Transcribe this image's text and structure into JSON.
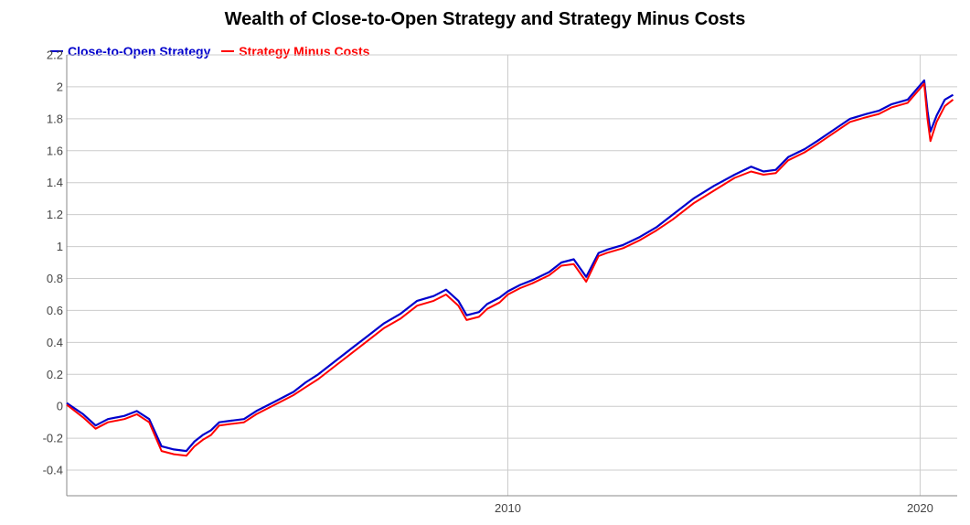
{
  "chart_data": {
    "type": "line",
    "title": "Wealth of Close-to-Open Strategy and Strategy Minus Costs",
    "xlabel": "",
    "ylabel": "",
    "x_tick_labels": [
      "2010",
      "2020"
    ],
    "y_ticks": [
      "2.2",
      "2",
      "1.8",
      "1.6",
      "1.4",
      "1.2",
      "1",
      "0.8",
      "0.6",
      "0.4",
      "0.2",
      "0",
      "-0.2",
      "-0.4"
    ],
    "y_tick_values": [
      2.2,
      2.0,
      1.8,
      1.6,
      1.4,
      1.2,
      1.0,
      0.8,
      0.6,
      0.4,
      0.2,
      0.0,
      -0.2,
      -0.4
    ],
    "xlim": [
      1999.3,
      2020.9
    ],
    "ylim": [
      -0.56,
      2.2
    ],
    "x_ticks": [
      2010,
      2020
    ],
    "grid": true,
    "legend_position": "top-left",
    "series": [
      {
        "name": "Close-to-Open Strategy",
        "color": "#0000cc",
        "x": [
          1999.3,
          1999.7,
          2000.0,
          2000.3,
          2000.7,
          2001.0,
          2001.3,
          2001.6,
          2001.9,
          2002.2,
          2002.4,
          2002.6,
          2002.8,
          2003.0,
          2003.3,
          2003.6,
          2003.9,
          2004.2,
          2004.5,
          2004.8,
          2005.1,
          2005.4,
          2005.8,
          2006.2,
          2006.6,
          2007.0,
          2007.4,
          2007.8,
          2008.2,
          2008.5,
          2008.8,
          2009.0,
          2009.3,
          2009.5,
          2009.8,
          2010.0,
          2010.3,
          2010.6,
          2011.0,
          2011.3,
          2011.6,
          2011.9,
          2012.2,
          2012.4,
          2012.8,
          2013.2,
          2013.6,
          2014.0,
          2014.5,
          2015.0,
          2015.5,
          2015.9,
          2016.2,
          2016.5,
          2016.8,
          2017.2,
          2017.5,
          2017.9,
          2018.3,
          2018.7,
          2019.0,
          2019.3,
          2019.7,
          2020.0,
          2020.1,
          2020.18,
          2020.25,
          2020.4,
          2020.6,
          2020.8
        ],
        "values": [
          0.02,
          -0.05,
          -0.12,
          -0.08,
          -0.06,
          -0.03,
          -0.08,
          -0.25,
          -0.27,
          -0.28,
          -0.22,
          -0.18,
          -0.15,
          -0.1,
          -0.09,
          -0.08,
          -0.03,
          0.01,
          0.05,
          0.09,
          0.15,
          0.2,
          0.28,
          0.36,
          0.44,
          0.52,
          0.58,
          0.66,
          0.69,
          0.73,
          0.66,
          0.57,
          0.59,
          0.64,
          0.68,
          0.72,
          0.76,
          0.79,
          0.84,
          0.9,
          0.92,
          0.81,
          0.96,
          0.98,
          1.01,
          1.06,
          1.12,
          1.2,
          1.3,
          1.38,
          1.45,
          1.5,
          1.47,
          1.48,
          1.56,
          1.61,
          1.66,
          1.73,
          1.8,
          1.83,
          1.85,
          1.89,
          1.92,
          2.01,
          2.04,
          1.85,
          1.72,
          1.82,
          1.92,
          1.95
        ]
      },
      {
        "name": "Strategy Minus Costs",
        "color": "#ff0000",
        "x": [
          1999.3,
          1999.7,
          2000.0,
          2000.3,
          2000.7,
          2001.0,
          2001.3,
          2001.6,
          2001.9,
          2002.2,
          2002.4,
          2002.6,
          2002.8,
          2003.0,
          2003.3,
          2003.6,
          2003.9,
          2004.2,
          2004.5,
          2004.8,
          2005.1,
          2005.4,
          2005.8,
          2006.2,
          2006.6,
          2007.0,
          2007.4,
          2007.8,
          2008.2,
          2008.5,
          2008.8,
          2009.0,
          2009.3,
          2009.5,
          2009.8,
          2010.0,
          2010.3,
          2010.6,
          2011.0,
          2011.3,
          2011.6,
          2011.9,
          2012.2,
          2012.4,
          2012.8,
          2013.2,
          2013.6,
          2014.0,
          2014.5,
          2015.0,
          2015.5,
          2015.9,
          2016.2,
          2016.5,
          2016.8,
          2017.2,
          2017.5,
          2017.9,
          2018.3,
          2018.7,
          2019.0,
          2019.3,
          2019.7,
          2020.0,
          2020.1,
          2020.18,
          2020.25,
          2020.4,
          2020.6,
          2020.8
        ],
        "values": [
          0.01,
          -0.07,
          -0.14,
          -0.1,
          -0.08,
          -0.05,
          -0.1,
          -0.28,
          -0.3,
          -0.31,
          -0.25,
          -0.21,
          -0.18,
          -0.12,
          -0.11,
          -0.1,
          -0.05,
          -0.01,
          0.03,
          0.07,
          0.12,
          0.17,
          0.25,
          0.33,
          0.41,
          0.49,
          0.55,
          0.63,
          0.66,
          0.7,
          0.63,
          0.54,
          0.56,
          0.61,
          0.65,
          0.7,
          0.74,
          0.77,
          0.82,
          0.88,
          0.89,
          0.78,
          0.94,
          0.96,
          0.99,
          1.04,
          1.1,
          1.17,
          1.27,
          1.35,
          1.43,
          1.47,
          1.45,
          1.46,
          1.54,
          1.59,
          1.64,
          1.71,
          1.78,
          1.81,
          1.83,
          1.87,
          1.9,
          1.99,
          2.02,
          1.8,
          1.66,
          1.78,
          1.88,
          1.92
        ]
      }
    ]
  }
}
